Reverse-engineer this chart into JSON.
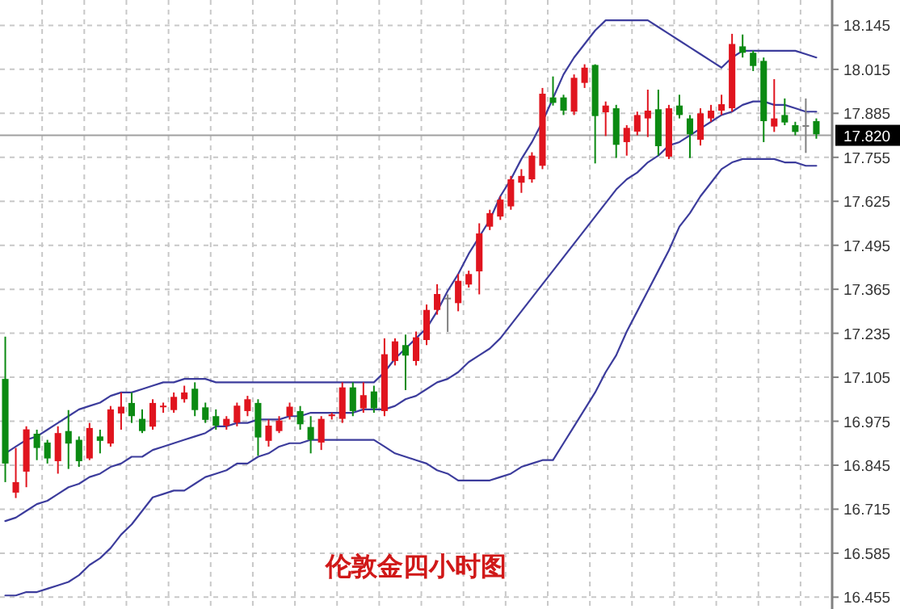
{
  "chart_data": {
    "type": "candlestick",
    "title": "伦敦金四小时图",
    "categories": [
      null,
      null,
      null,
      null,
      null,
      null,
      null,
      null,
      null,
      null,
      null,
      null,
      null,
      null,
      null,
      null,
      null,
      null,
      null,
      null,
      null,
      null,
      null,
      null,
      null,
      null,
      null,
      null,
      null,
      null,
      null,
      null,
      null,
      null,
      null,
      null,
      null,
      null,
      null,
      null,
      null,
      null,
      null,
      null,
      null,
      null,
      null,
      null,
      null,
      null,
      null,
      null,
      null,
      null,
      null,
      null,
      null,
      null,
      null,
      null,
      null,
      null,
      null,
      null,
      null,
      null,
      null,
      null,
      null,
      null,
      null,
      null,
      null,
      null,
      null,
      null,
      null,
      null
    ],
    "ohlc": [
      [
        17.1,
        17.225,
        16.795,
        16.85
      ],
      [
        16.764,
        16.896,
        16.748,
        16.795
      ],
      [
        16.826,
        16.96,
        16.78,
        16.951
      ],
      [
        16.938,
        16.95,
        16.86,
        16.896
      ],
      [
        16.912,
        16.92,
        16.85,
        16.865
      ],
      [
        16.857,
        16.96,
        16.82,
        16.94
      ],
      [
        16.946,
        17.008,
        16.834,
        16.909
      ],
      [
        16.92,
        16.93,
        16.84,
        16.857
      ],
      [
        16.865,
        16.97,
        16.86,
        16.955
      ],
      [
        16.93,
        16.95,
        16.88,
        16.917
      ],
      [
        16.909,
        17.02,
        16.9,
        17.01
      ],
      [
        16.998,
        17.06,
        16.95,
        17.018
      ],
      [
        17.029,
        17.06,
        16.97,
        16.99
      ],
      [
        16.982,
        17.01,
        16.94,
        16.946
      ],
      [
        16.959,
        17.04,
        16.95,
        17.029
      ],
      [
        17.02,
        17.03,
        17.0,
        17.021
      ],
      [
        17.008,
        17.06,
        17.0,
        17.047
      ],
      [
        17.04,
        17.08,
        17.03,
        17.06
      ],
      [
        17.071,
        17.09,
        16.99,
        17.008
      ],
      [
        17.016,
        17.03,
        16.97,
        16.979
      ],
      [
        16.99,
        17.01,
        16.95,
        16.962
      ],
      [
        16.962,
        16.99,
        16.95,
        16.982
      ],
      [
        16.971,
        17.03,
        16.96,
        17.021
      ],
      [
        17.005,
        17.05,
        16.99,
        17.04
      ],
      [
        17.029,
        17.04,
        16.873,
        16.927
      ],
      [
        16.917,
        16.98,
        16.9,
        16.962
      ],
      [
        16.946,
        16.99,
        16.94,
        16.977
      ],
      [
        16.99,
        17.03,
        16.98,
        17.018
      ],
      [
        17.005,
        17.02,
        16.95,
        16.966
      ],
      [
        16.958,
        16.99,
        16.88,
        16.92
      ],
      [
        16.912,
        16.99,
        16.89,
        16.982
      ],
      [
        16.99,
        17.0,
        16.98,
        16.995
      ],
      [
        16.982,
        17.09,
        16.97,
        17.075
      ],
      [
        17.075,
        17.09,
        16.99,
        17.005
      ],
      [
        17.013,
        17.09,
        17.0,
        17.052
      ],
      [
        17.063,
        17.08,
        17.0,
        17.013
      ],
      [
        17.005,
        17.22,
        16.99,
        17.173
      ],
      [
        17.153,
        17.22,
        17.14,
        17.211
      ],
      [
        17.2,
        17.231,
        17.067,
        17.169
      ],
      [
        17.153,
        17.24,
        17.14,
        17.223
      ],
      [
        17.215,
        17.32,
        17.2,
        17.304
      ],
      [
        17.304,
        17.38,
        17.29,
        17.351
      ],
      [
        17.34,
        17.35,
        17.239,
        17.34
      ],
      [
        17.324,
        17.41,
        17.3,
        17.39
      ],
      [
        17.379,
        17.42,
        17.37,
        17.41
      ],
      [
        17.418,
        17.56,
        17.35,
        17.53
      ],
      [
        17.55,
        17.6,
        17.54,
        17.59
      ],
      [
        17.58,
        17.64,
        17.57,
        17.63
      ],
      [
        17.61,
        17.7,
        17.6,
        17.69
      ],
      [
        17.68,
        17.72,
        17.65,
        17.7
      ],
      [
        17.69,
        17.77,
        17.68,
        17.76
      ],
      [
        17.73,
        17.96,
        17.72,
        17.943
      ],
      [
        17.932,
        17.994,
        17.908,
        17.916
      ],
      [
        17.932,
        17.94,
        17.88,
        17.893
      ],
      [
        17.89,
        18.0,
        17.88,
        17.99
      ],
      [
        17.975,
        18.03,
        17.96,
        18.02
      ],
      [
        18.028,
        18.03,
        17.737,
        17.877
      ],
      [
        17.888,
        17.92,
        17.818,
        17.908
      ],
      [
        17.9,
        17.91,
        17.753,
        17.792
      ],
      [
        17.8,
        17.85,
        17.76,
        17.842
      ],
      [
        17.831,
        17.89,
        17.82,
        17.88
      ],
      [
        17.87,
        17.955,
        17.815,
        17.893
      ],
      [
        17.897,
        17.955,
        17.76,
        17.788
      ],
      [
        17.757,
        17.91,
        17.75,
        17.9
      ],
      [
        17.908,
        17.94,
        17.87,
        17.88
      ],
      [
        17.87,
        17.88,
        17.753,
        17.823
      ],
      [
        17.807,
        17.9,
        17.79,
        17.885
      ],
      [
        17.87,
        17.91,
        17.86,
        17.893
      ],
      [
        17.893,
        17.94,
        17.88,
        17.912
      ],
      [
        17.9,
        18.12,
        17.89,
        18.09
      ],
      [
        18.083,
        18.118,
        18.05,
        18.064
      ],
      [
        18.064,
        18.07,
        18.01,
        18.025
      ],
      [
        18.04,
        18.05,
        17.8,
        17.862
      ],
      [
        17.846,
        17.986,
        17.83,
        17.87
      ],
      [
        17.88,
        17.929,
        17.85,
        17.858
      ],
      [
        17.85,
        17.86,
        17.82,
        17.83
      ],
      [
        17.85,
        17.929,
        17.768,
        17.85
      ],
      [
        17.862,
        17.87,
        17.81,
        17.823
      ]
    ],
    "colors": [
      "#0b8a12",
      "#e0141e",
      "#e0141e",
      "#0b8a12",
      "#0b8a12",
      "#e0141e",
      "#0b8a12",
      "#0b8a12",
      "#e0141e",
      "#0b8a12",
      "#e0141e",
      "#e0141e",
      "#0b8a12",
      "#0b8a12",
      "#e0141e",
      "#e0141e",
      "#e0141e",
      "#e0141e",
      "#0b8a12",
      "#0b8a12",
      "#0b8a12",
      "#e0141e",
      "#e0141e",
      "#e0141e",
      "#0b8a12",
      "#e0141e",
      "#e0141e",
      "#e0141e",
      "#0b8a12",
      "#0b8a12",
      "#e0141e",
      "#e0141e",
      "#e0141e",
      "#0b8a12",
      "#e0141e",
      "#0b8a12",
      "#e0141e",
      "#e0141e",
      "#0b8a12",
      "#e0141e",
      "#e0141e",
      "#e0141e",
      "#808080",
      "#e0141e",
      "#e0141e",
      "#e0141e",
      "#e0141e",
      "#e0141e",
      "#e0141e",
      "#e0141e",
      "#e0141e",
      "#e0141e",
      "#0b8a12",
      "#0b8a12",
      "#e0141e",
      "#e0141e",
      "#0b8a12",
      "#e0141e",
      "#0b8a12",
      "#e0141e",
      "#e0141e",
      "#e0141e",
      "#0b8a12",
      "#e0141e",
      "#0b8a12",
      "#0b8a12",
      "#e0141e",
      "#e0141e",
      "#e0141e",
      "#e0141e",
      "#0b8a12",
      "#0b8a12",
      "#0b8a12",
      "#e0141e",
      "#0b8a12",
      "#0b8a12",
      "#808080",
      "#0b8a12"
    ],
    "series": [
      {
        "type": "line",
        "color": "#3c3c9c",
        "values": [
          16.88,
          16.9,
          16.92,
          16.93,
          16.95,
          16.97,
          16.99,
          17.01,
          17.02,
          17.03,
          17.05,
          17.06,
          17.06,
          17.07,
          17.08,
          17.09,
          17.09,
          17.1,
          17.1,
          17.1,
          17.09,
          17.09,
          17.09,
          17.09,
          17.09,
          17.09,
          17.09,
          17.09,
          17.09,
          17.09,
          17.09,
          17.09,
          17.09,
          17.09,
          17.09,
          17.09,
          17.12,
          17.16,
          17.19,
          17.22,
          17.25,
          17.3,
          17.36,
          17.41,
          17.47,
          17.52,
          17.57,
          17.64,
          17.69,
          17.75,
          17.8,
          17.86,
          17.93,
          18.0,
          18.05,
          18.09,
          18.13,
          18.16,
          18.16,
          18.16,
          18.16,
          18.16,
          18.14,
          18.12,
          18.1,
          18.08,
          18.06,
          18.04,
          18.02,
          18.05,
          18.07,
          18.07,
          18.07,
          18.07,
          18.07,
          18.07,
          18.06,
          18.05
        ]
      },
      {
        "type": "line",
        "color": "#3c3c9c",
        "values": [
          16.68,
          16.69,
          16.71,
          16.73,
          16.74,
          16.76,
          16.78,
          16.79,
          16.81,
          16.82,
          16.84,
          16.85,
          16.87,
          16.87,
          16.89,
          16.9,
          16.91,
          16.92,
          16.93,
          16.94,
          16.96,
          16.96,
          16.97,
          16.97,
          16.98,
          16.98,
          16.98,
          16.99,
          16.99,
          17.0,
          17.0,
          17.0,
          17.0,
          17.0,
          17.01,
          17.01,
          17.01,
          17.02,
          17.04,
          17.05,
          17.07,
          17.09,
          17.1,
          17.12,
          17.15,
          17.17,
          17.19,
          17.22,
          17.26,
          17.3,
          17.34,
          17.38,
          17.42,
          17.46,
          17.5,
          17.54,
          17.58,
          17.62,
          17.66,
          17.69,
          17.71,
          17.74,
          17.76,
          17.79,
          17.8,
          17.82,
          17.84,
          17.86,
          17.88,
          17.89,
          17.91,
          17.92,
          17.92,
          17.91,
          17.91,
          17.9,
          17.89,
          17.89
        ]
      },
      {
        "type": "line",
        "color": "#3c3c9c",
        "values": [
          16.46,
          16.46,
          16.47,
          16.47,
          16.48,
          16.49,
          16.5,
          16.52,
          16.55,
          16.57,
          16.6,
          16.64,
          16.67,
          16.71,
          16.75,
          16.76,
          16.77,
          16.77,
          16.79,
          16.81,
          16.82,
          16.83,
          16.85,
          16.85,
          16.87,
          16.88,
          16.9,
          16.91,
          16.91,
          16.92,
          16.92,
          16.92,
          16.92,
          16.92,
          16.92,
          16.92,
          16.9,
          16.88,
          16.87,
          16.86,
          16.85,
          16.83,
          16.82,
          16.8,
          16.8,
          16.8,
          16.8,
          16.81,
          16.82,
          16.84,
          16.85,
          16.86,
          16.86,
          16.91,
          16.96,
          17.01,
          17.06,
          17.12,
          17.17,
          17.24,
          17.3,
          17.36,
          17.42,
          17.48,
          17.55,
          17.59,
          17.64,
          17.68,
          17.72,
          17.74,
          17.75,
          17.75,
          17.75,
          17.75,
          17.74,
          17.74,
          17.73,
          17.73
        ]
      }
    ],
    "ylim": [
      16.42,
      18.22
    ],
    "yticks": [
      18.145,
      18.015,
      17.885,
      17.755,
      17.625,
      17.495,
      17.365,
      17.235,
      17.105,
      16.975,
      16.845,
      16.715,
      16.585,
      16.455
    ],
    "ref_lines": [
      {
        "axis": "y",
        "value": 17.82,
        "label": "17.820",
        "color": "#a0a0a0"
      }
    ],
    "grid": true,
    "tick_labels": "y",
    "line_style": "solid"
  }
}
